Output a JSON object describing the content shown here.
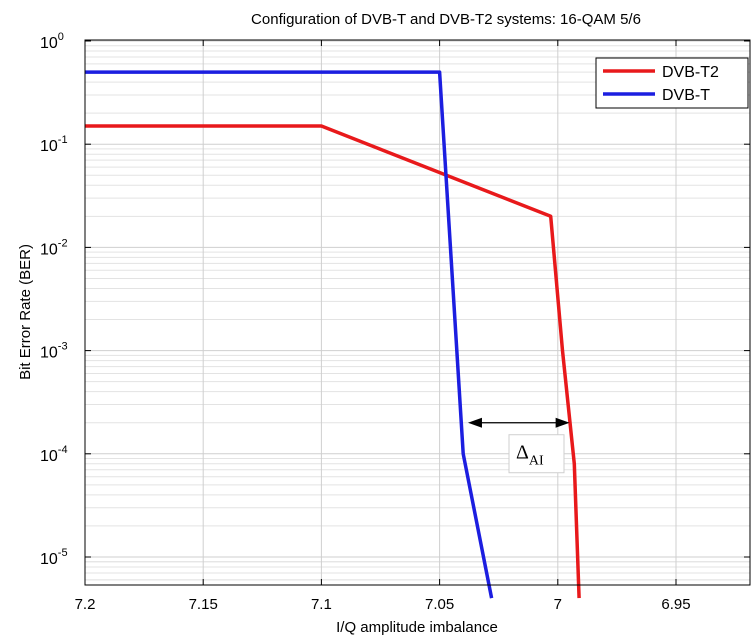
{
  "chart_data": {
    "type": "line",
    "title": "Configuration of DVB-T and DVB-T2 systems: 16-QAM 5/6",
    "xlabel": "I/Q amplitude imbalance",
    "ylabel": "Bit Error Rate (BER)",
    "xlim": [
      7.2,
      6.92
    ],
    "x_reversed": true,
    "ylim": [
      4e-06,
      1
    ],
    "yscale": "log",
    "grid": true,
    "legend_position": "top-right",
    "x_ticks": [
      "7.2",
      "7.15",
      "7.1",
      "7.05",
      "7",
      "6.95"
    ],
    "x_tick_values": [
      7.2,
      7.15,
      7.1,
      7.05,
      7.0,
      6.95
    ],
    "y_tick_exponents": [
      "0",
      "-1",
      "-2",
      "-3",
      "-4",
      "-5"
    ],
    "y_tick_base": "10",
    "series": [
      {
        "name": "DVB-T2",
        "color": "#e8191b",
        "x": [
          7.2,
          7.1,
          7.003,
          6.998,
          6.993,
          6.991
        ],
        "y": [
          0.15,
          0.15,
          0.02,
          0.001,
          8e-05,
          4e-06
        ]
      },
      {
        "name": "DVB-T",
        "color": "#1c1ee0",
        "x": [
          7.2,
          7.05,
          7.04,
          7.028
        ],
        "y": [
          0.5,
          0.5,
          0.0001,
          4e-06
        ]
      }
    ],
    "annotation": {
      "text": "Δ",
      "subscript": "AI",
      "arrow_y": 0.0002,
      "arrow_from_x": 7.038,
      "arrow_to_x": 6.995
    }
  }
}
